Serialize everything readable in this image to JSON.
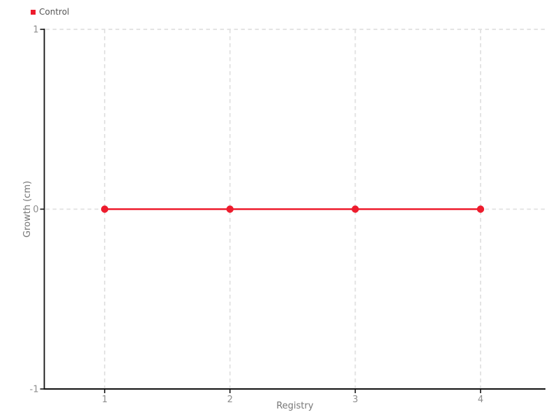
{
  "chart_data": {
    "type": "line",
    "title": "",
    "xlabel": "Registry",
    "ylabel": "Growth (cm)",
    "x": [
      1,
      2,
      3,
      4
    ],
    "series": [
      {
        "name": "Control",
        "values": [
          0,
          0,
          0,
          0
        ],
        "color": "#ed1c2d",
        "marker": "circle"
      }
    ],
    "xlim": [
      0.518,
      4.518
    ],
    "ylim": [
      -1,
      1
    ],
    "x_ticks": [
      1,
      2,
      3,
      4
    ],
    "y_ticks": [
      1,
      0,
      -1
    ],
    "grid": "dashed-both-axes",
    "legend_position": "top-left"
  },
  "legend": {
    "items": [
      {
        "label": "Control",
        "color": "#ed1c2d"
      }
    ]
  },
  "colors": {
    "background": "#ffffff",
    "series_red": "#ed1c2d",
    "grid": "#e1e1e1",
    "axis": "#111111",
    "tick_label": "#8e8e8e",
    "axis_title": "#777777",
    "legend_text": "#555555"
  }
}
